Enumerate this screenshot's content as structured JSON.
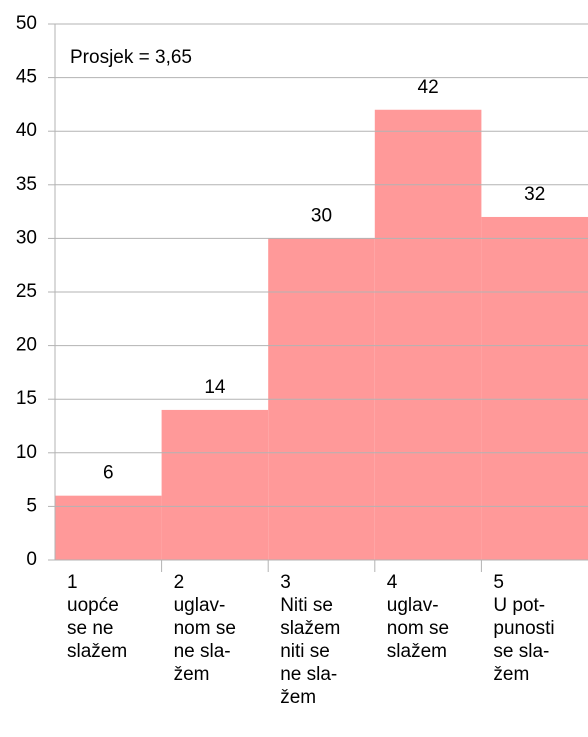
{
  "chart_data": {
    "type": "bar",
    "annotation": "Prosjek = 3,65",
    "categories": [
      "1\nuopće\nse ne\nslažem",
      "2\nuglav-\nnom se\nne sla-\nžem",
      "3\nNiti se\nslažem\nniti se\nne sla-\nžem",
      "4\nuglav-\nnom se\nslažem",
      "5\nU pot-\npunosti\nse sla-\nžem"
    ],
    "values": [
      6,
      14,
      30,
      42,
      32
    ],
    "color": "#ff9999",
    "ylim": [
      0,
      50
    ],
    "yticks": [
      0,
      5,
      10,
      15,
      20,
      25,
      30,
      35,
      40,
      45,
      50
    ],
    "grid": true
  }
}
